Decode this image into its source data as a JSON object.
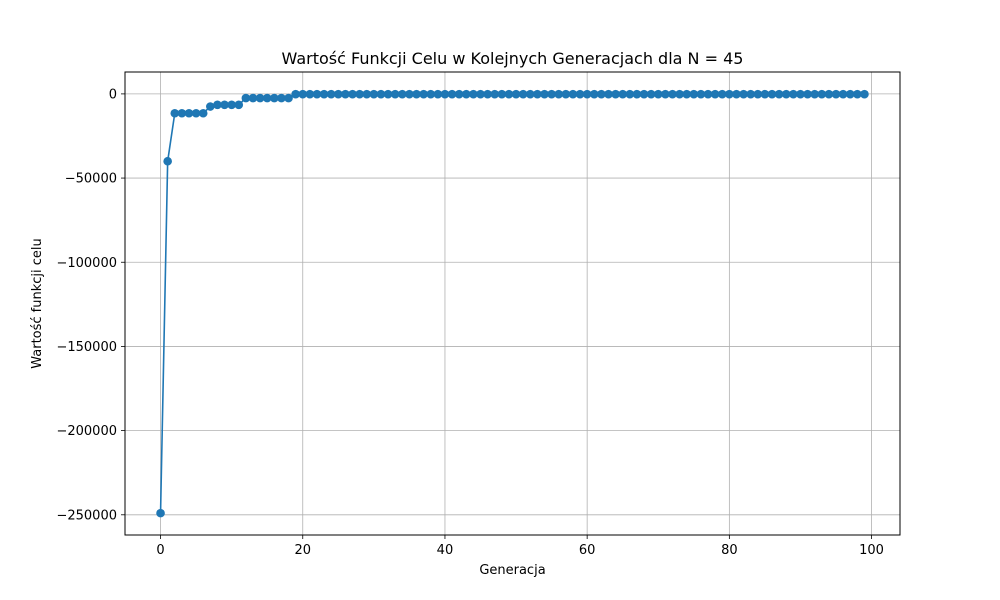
{
  "chart_data": {
    "type": "line",
    "title": "Wartość Funkcji Celu w Kolejnych Generacjach dla N = 45",
    "xlabel": "Generacja",
    "ylabel": "Wartość funkcji celu",
    "xlim": [
      -5,
      104
    ],
    "ylim": [
      -262000,
      13000
    ],
    "xticks": [
      0,
      20,
      40,
      60,
      80,
      100
    ],
    "xtick_labels": [
      "0",
      "20",
      "40",
      "60",
      "80",
      "100"
    ],
    "yticks": [
      0,
      -50000,
      -100000,
      -150000,
      -200000,
      -250000
    ],
    "ytick_labels": [
      "0",
      "−50000",
      "−100000",
      "−150000",
      "−200000",
      "−250000"
    ],
    "grid": true,
    "marker": "circle",
    "color": "#1f77b4",
    "series": [
      {
        "x": [
          0,
          1,
          2,
          3,
          4,
          5,
          6,
          7,
          8,
          9,
          10,
          11,
          12,
          13,
          14,
          15,
          16,
          17,
          18,
          19,
          20,
          21,
          22,
          23,
          24,
          25,
          26,
          27,
          28,
          29,
          30,
          31,
          32,
          33,
          34,
          35,
          36,
          37,
          38,
          39,
          40,
          41,
          42,
          43,
          44,
          45,
          46,
          47,
          48,
          49,
          50,
          51,
          52,
          53,
          54,
          55,
          56,
          57,
          58,
          59,
          60,
          61,
          62,
          63,
          64,
          65,
          66,
          67,
          68,
          69,
          70,
          71,
          72,
          73,
          74,
          75,
          76,
          77,
          78,
          79,
          80,
          81,
          82,
          83,
          84,
          85,
          86,
          87,
          88,
          89,
          90,
          91,
          92,
          93,
          94,
          95,
          96,
          97,
          98,
          99
        ],
        "values": [
          -249000,
          -40000,
          -11500,
          -11500,
          -11500,
          -11500,
          -11500,
          -7500,
          -6500,
          -6500,
          -6500,
          -6500,
          -2500,
          -2500,
          -2500,
          -2500,
          -2500,
          -2500,
          -2500,
          -200,
          -200,
          -200,
          -200,
          -200,
          -200,
          -200,
          -200,
          -200,
          -200,
          -200,
          -200,
          -200,
          -200,
          -200,
          -200,
          -200,
          -200,
          -200,
          -200,
          -200,
          -200,
          -200,
          -200,
          -200,
          -200,
          -200,
          -200,
          -200,
          -200,
          -200,
          -200,
          -200,
          -200,
          -200,
          -200,
          -200,
          -200,
          -200,
          -200,
          -200,
          -200,
          -200,
          -200,
          -200,
          -200,
          -200,
          -200,
          -200,
          -200,
          -200,
          -200,
          -200,
          -200,
          -200,
          -200,
          -200,
          -200,
          -200,
          -200,
          -200,
          -200,
          -200,
          -200,
          -200,
          -200,
          -200,
          -200,
          -200,
          -200,
          -200,
          -200,
          -200,
          -200,
          -200,
          -200,
          -200,
          -200,
          -200,
          -200,
          -200
        ]
      }
    ]
  }
}
